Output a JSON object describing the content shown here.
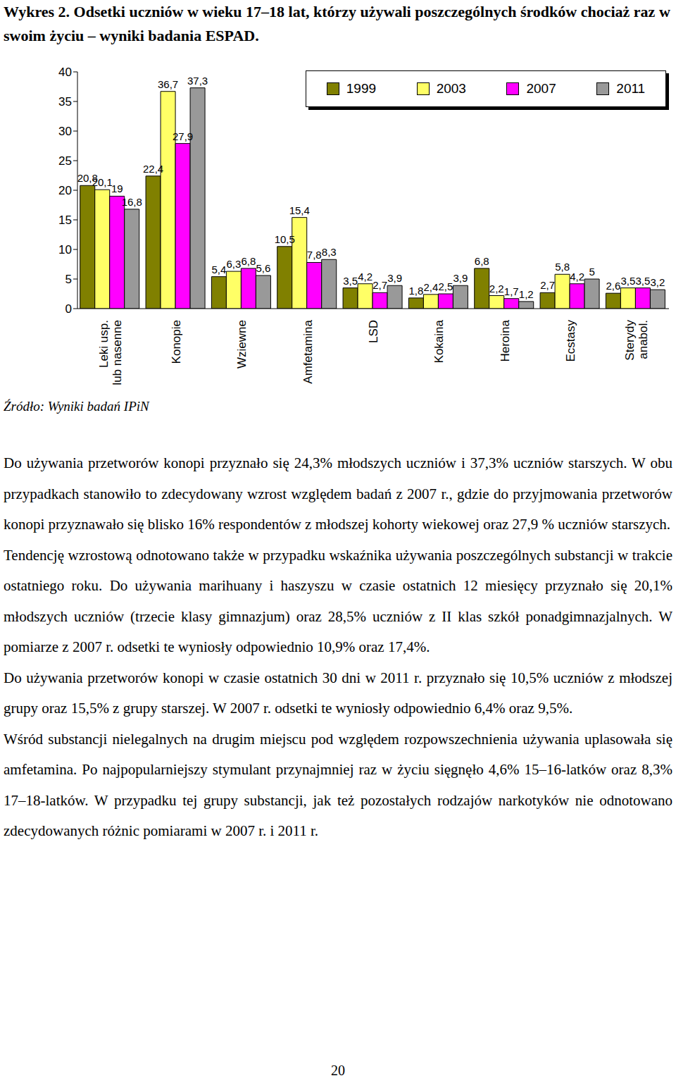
{
  "header": {
    "title": "Wykres 2. Odsetki uczniów w wieku 17–18 lat, którzy używali poszczególnych środków chociaż raz w swoim życiu – wyniki badania ESPAD."
  },
  "chart_data": {
    "type": "bar",
    "categories": [
      "Leki usp.\nlub nasenne",
      "Konopie",
      "Wziewne",
      "Amfetamina",
      "LSD",
      "Kokaina",
      "Heroina",
      "Ecstasy",
      "Sterydy\nanabol."
    ],
    "series": [
      {
        "name": "1999",
        "color": "#808000",
        "values": [
          20.8,
          22.4,
          5.4,
          10.5,
          3.5,
          1.8,
          6.8,
          2.7,
          2.6
        ],
        "value_labels": [
          "20,8",
          "22,4",
          "5,4",
          "10,5",
          "3,5",
          "1,8",
          "6,8",
          "2,7",
          "2,6"
        ]
      },
      {
        "name": "2003",
        "color": "#ffff66",
        "values": [
          20.1,
          36.7,
          6.3,
          15.4,
          4.2,
          2.4,
          2.2,
          5.8,
          3.5
        ],
        "value_labels": [
          "20,1",
          "36,7",
          "6,3",
          "15,4",
          "4,2",
          "2,4",
          "2,2",
          "5,8",
          "3,5"
        ]
      },
      {
        "name": "2007",
        "color": "#ff00ff",
        "values": [
          19,
          27.9,
          6.8,
          7.8,
          2.7,
          2.5,
          1.7,
          4.2,
          3.5
        ],
        "value_labels": [
          "19",
          "27,9",
          "6,8",
          "7,8",
          "2,7",
          "2,5",
          "1,7",
          "4,2",
          "3,5"
        ]
      },
      {
        "name": "2011",
        "color": "#999999",
        "values": [
          16.8,
          37.3,
          5.6,
          8.3,
          3.9,
          3.9,
          1.2,
          5,
          3.2
        ],
        "value_labels": [
          "16,8",
          "37,3",
          "5,6",
          "8,3",
          "3,9",
          "3,9",
          "1,2",
          "5",
          "3,2"
        ]
      }
    ],
    "ylim": [
      0,
      40
    ],
    "yticks": [
      0,
      5,
      10,
      15,
      20,
      25,
      30,
      35,
      40
    ],
    "grid": false,
    "legend": "top-right",
    "data_labels": true
  },
  "source": "Źródło: Wyniki badań IPiN",
  "paragraphs": [
    "Do używania przetworów konopi przyznało się 24,3% młodszych uczniów i 37,3% uczniów starszych. W obu przypadkach stanowiło to zdecydowany wzrost względem badań z 2007 r., gdzie do przyjmowania przetworów konopi przyznawało się blisko 16% respondentów z młodszej kohorty wiekowej oraz 27,9 % uczniów starszych.",
    "Tendencję wzrostową odnotowano także w przypadku wskaźnika używania poszczególnych substancji w trakcie ostatniego roku. Do używania marihuany i haszyszu w czasie ostatnich 12 miesięcy przyznało się 20,1% młodszych uczniów (trzecie klasy gimnazjum) oraz 28,5% uczniów z II klas szkół ponadgimnazjalnych. W pomiarze z 2007 r. odsetki te wyniosły odpowiednio 10,9% oraz 17,4%.",
    "Do używania przetworów konopi w czasie ostatnich 30 dni w 2011 r. przyznało się 10,5% uczniów z młodszej grupy oraz 15,5% z grupy starszej. W 2007 r. odsetki te wyniosły odpowiednio 6,4% oraz 9,5%.",
    "Wśród substancji nielegalnych na drugim miejscu pod względem rozpowszechnienia używania uplasowała się amfetamina. Po najpopularniejszy stymulant przynajmniej raz w życiu sięgnęło 4,6% 15–16-latków oraz 8,3% 17–18-latków. W przypadku tej grupy substancji, jak też pozostałych rodzajów narkotyków nie odnotowano zdecydowanych różnic pomiarami w 2007 r. i 2011 r."
  ],
  "page_number": "20"
}
